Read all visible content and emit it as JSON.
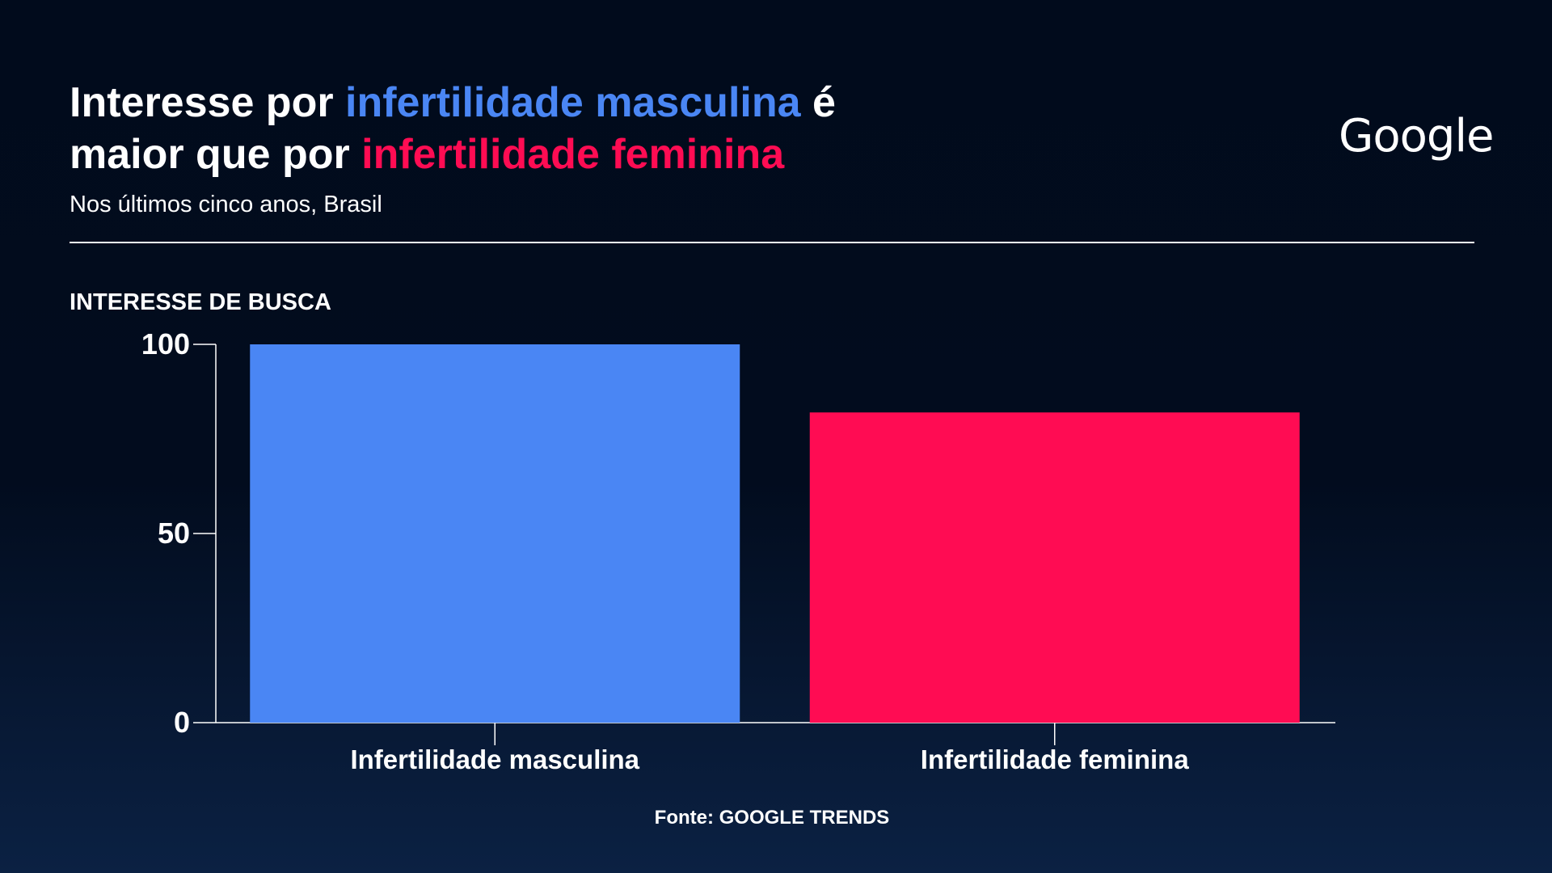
{
  "header": {
    "title_line1_prefix": "Interesse por ",
    "title_line1_highlight": "infertilidade masculina",
    "title_line1_suffix": " é",
    "title_line2_prefix": "maior que por ",
    "title_line2_highlight": "infertilidade feminina",
    "subtitle": "Nos últimos cinco anos, Brasil",
    "logo_text": "Google"
  },
  "footer": {
    "source": "Fonte: GOOGLE TRENDS"
  },
  "colors": {
    "male": "#4a86f4",
    "female": "#ff0c53",
    "background": "#010b1c",
    "text": "#ffffff"
  },
  "chart_data": {
    "type": "bar",
    "ylabel": "INTERESSE DE BUSCA",
    "xlabel": "",
    "categories": [
      "Infertilidade masculina",
      "Infertilidade feminina"
    ],
    "values": [
      100,
      82
    ],
    "colors": [
      "#4a86f4",
      "#ff0c53"
    ],
    "ylim": [
      0,
      100
    ],
    "yticks": [
      0,
      50,
      100
    ],
    "grid": false,
    "legend": "none"
  }
}
